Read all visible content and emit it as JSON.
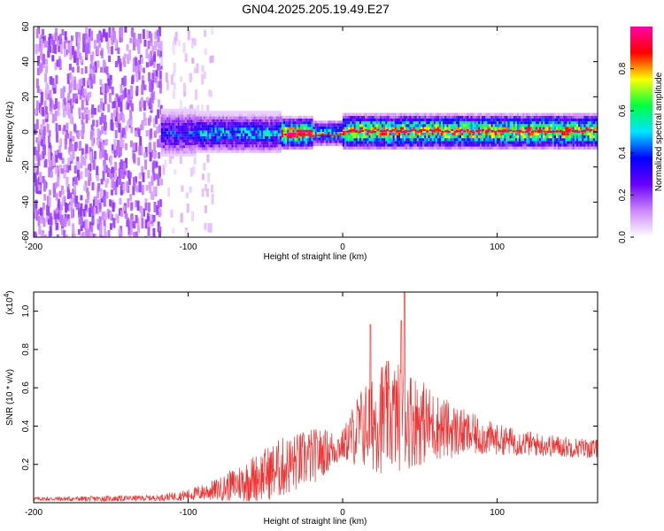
{
  "title": "GN04.2025.205.19.49.E27",
  "chart_data": [
    {
      "type": "heatmap",
      "xlabel": "Height of straight line (km)",
      "ylabel": "Frequency (Hz)",
      "xlim": [
        -200,
        165
      ],
      "ylim": [
        -60,
        60
      ],
      "xticks": [
        -200,
        -100,
        0,
        100
      ],
      "yticks": [
        -60,
        -40,
        -20,
        0,
        20,
        40,
        60
      ],
      "colorbar": {
        "label": "Normalized spectral amplitude",
        "range": [
          0,
          1
        ],
        "ticks": [
          0.0,
          0.2,
          0.4,
          0.6,
          0.8
        ],
        "colors": [
          "#ffffff",
          "#cc88ff",
          "#6a00ff",
          "#0000ff",
          "#00e5ff",
          "#00ff40",
          "#ffff00",
          "#ff0000",
          "#ff00aa"
        ]
      },
      "regions": [
        {
          "x": [
            -200,
            -118
          ],
          "description_level": 0.15
        },
        {
          "x": [
            -118,
            -95
          ],
          "freq_band_hz": [
            -8,
            8
          ],
          "level": 0.4
        },
        {
          "x": [
            -95,
            -40
          ],
          "freq_band_hz": [
            -6,
            6
          ],
          "level": 0.5
        },
        {
          "x": [
            -40,
            -20
          ],
          "freq_band_hz": [
            -4,
            4
          ],
          "level": 0.9
        },
        {
          "x": [
            -20,
            0
          ],
          "freq_band_hz": [
            -2,
            2
          ],
          "level": 0.6
        },
        {
          "x": [
            0,
            165
          ],
          "freq_band_hz": [
            -4,
            6
          ],
          "level": 0.85
        }
      ]
    },
    {
      "type": "line",
      "xlabel": "Height of straight line (km)",
      "ylabel": "SNR (10 * v/v)",
      "scale_label": "(x10",
      "scale_exp": "4",
      "xlim": [
        -200,
        165
      ],
      "ylim": [
        0,
        1.1
      ],
      "xticks": [
        -200,
        -100,
        0,
        100
      ],
      "yticks": [
        0.2,
        0.4,
        0.6,
        0.8,
        1.0
      ],
      "color": "#ee3333",
      "envelope": [
        {
          "x": -200,
          "mean": 0.02,
          "spread": 0.01
        },
        {
          "x": -160,
          "mean": 0.02,
          "spread": 0.015
        },
        {
          "x": -120,
          "mean": 0.025,
          "spread": 0.015
        },
        {
          "x": -100,
          "mean": 0.04,
          "spread": 0.03
        },
        {
          "x": -80,
          "mean": 0.07,
          "spread": 0.06
        },
        {
          "x": -60,
          "mean": 0.12,
          "spread": 0.12
        },
        {
          "x": -40,
          "mean": 0.18,
          "spread": 0.16
        },
        {
          "x": -20,
          "mean": 0.24,
          "spread": 0.15
        },
        {
          "x": 0,
          "mean": 0.3,
          "spread": 0.08
        },
        {
          "x": 10,
          "mean": 0.38,
          "spread": 0.2
        },
        {
          "x": 25,
          "mean": 0.45,
          "spread": 0.3
        },
        {
          "x": 40,
          "mean": 0.45,
          "spread": 0.28
        },
        {
          "x": 60,
          "mean": 0.4,
          "spread": 0.18
        },
        {
          "x": 80,
          "mean": 0.36,
          "spread": 0.12
        },
        {
          "x": 100,
          "mean": 0.33,
          "spread": 0.08
        },
        {
          "x": 130,
          "mean": 0.3,
          "spread": 0.06
        },
        {
          "x": 165,
          "mean": 0.28,
          "spread": 0.05
        }
      ],
      "peaks": [
        {
          "x": 18,
          "y": 0.93
        },
        {
          "x": 40,
          "y": 1.1
        },
        {
          "x": 38,
          "y": 0.95
        }
      ]
    }
  ]
}
